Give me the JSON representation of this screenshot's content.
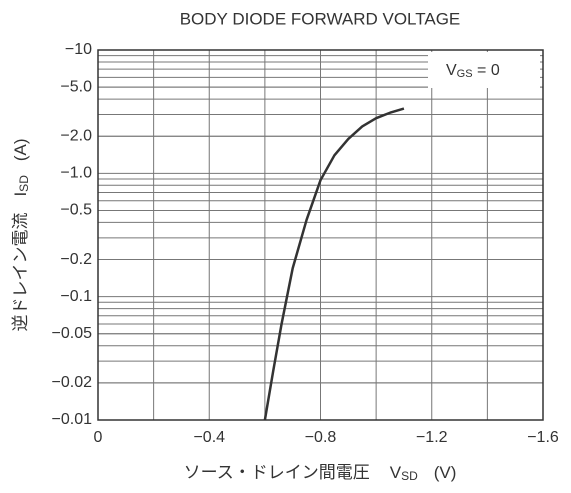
{
  "chart_data": {
    "type": "line",
    "title": "BODY DIODE FORWARD VOLTAGE",
    "annotation": {
      "main": "V",
      "sub": "GS",
      "rest": " = 0"
    },
    "ylabel": {
      "main": "逆ドレイン電流",
      "sym": "I",
      "sub": "SD",
      "unit": "(A)"
    },
    "xlabel": {
      "main": "ソース・ドレイン間電圧",
      "sym": "V",
      "sub": "SD",
      "unit": "(V)"
    },
    "x": [
      -0.6,
      -0.63,
      -0.66,
      -0.7,
      -0.75,
      -0.8,
      -0.85,
      -0.9,
      -0.95,
      -1.0,
      -1.05,
      -1.1
    ],
    "values": [
      -0.01,
      -0.025,
      -0.06,
      -0.17,
      -0.42,
      -0.88,
      -1.4,
      -1.9,
      -2.4,
      -2.8,
      -3.1,
      -3.35
    ],
    "color": "#333333",
    "xlim": [
      0,
      -1.6
    ],
    "xticks": [
      0,
      {
        "value": -0.4,
        "label": "−0.4"
      },
      {
        "value": -0.8,
        "label": "−0.8"
      },
      {
        "value": -1.2,
        "label": "−1.2"
      },
      {
        "value": -1.6,
        "label": "−1.6"
      }
    ],
    "ylim": [
      -0.01,
      -10
    ],
    "ylog": true,
    "yticks": [
      {
        "value": -10,
        "label": "−10"
      },
      {
        "value": -5,
        "label": "−5.0"
      },
      {
        "value": -2,
        "label": "−2.0"
      },
      {
        "value": -1,
        "label": "−1.0"
      },
      {
        "value": -0.5,
        "label": "−0.5"
      },
      {
        "value": -0.2,
        "label": "−0.2"
      },
      {
        "value": -0.1,
        "label": "−0.1"
      },
      {
        "value": -0.05,
        "label": "−0.05"
      },
      {
        "value": -0.02,
        "label": "−0.02"
      },
      {
        "value": -0.01,
        "label": "−0.01"
      }
    ],
    "grid": true
  }
}
